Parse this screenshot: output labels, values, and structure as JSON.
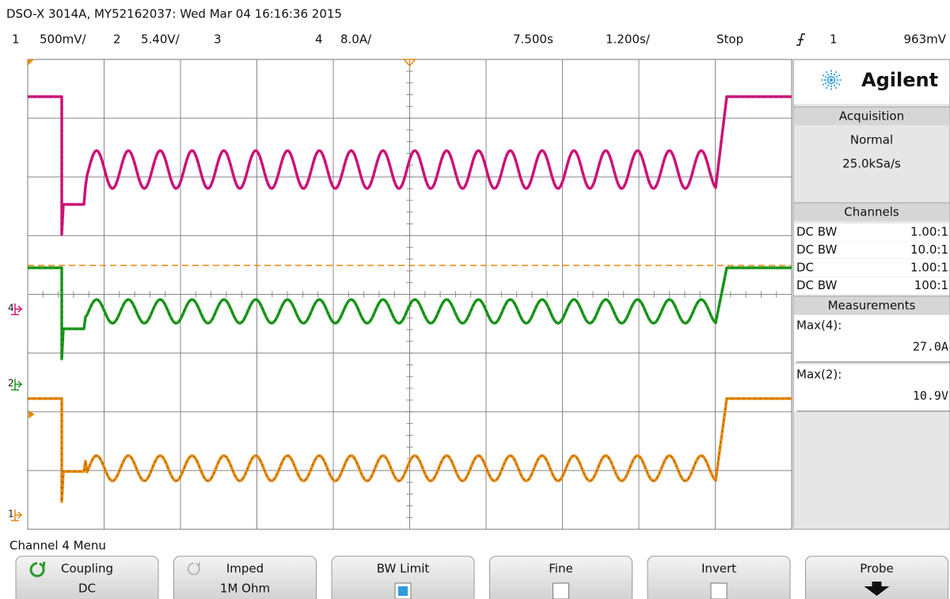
{
  "header": {
    "title": "DSO-X 3014A, MY52162037: Wed Mar 04 16:16:36 2015",
    "channels": [
      {
        "number": "1",
        "scale": "500mV/",
        "color": "#e8880c"
      },
      {
        "number": "2",
        "scale": "5.40V/",
        "color": "#1a9a1a"
      },
      {
        "number": "3",
        "color": "#5577dd"
      },
      {
        "number": "4",
        "scale": "8.0A/",
        "color": "#d4137a"
      }
    ],
    "time_delay": "7.500s",
    "time_scale": "1.200s/",
    "run_state": "Stop",
    "trigger_source": "1",
    "trigger_level": "963mV"
  },
  "markers": [
    "4",
    "2",
    "1"
  ],
  "side_panel": {
    "brand": "Agilent",
    "acquisition": {
      "title": "Acquisition",
      "mode": "Normal",
      "rate": "25.0kSa/s"
    },
    "channels": {
      "title": "Channels",
      "rows": [
        {
          "coupling": "DC BW",
          "probe": "1.00:1"
        },
        {
          "coupling": "DC BW",
          "probe": "10.0:1"
        },
        {
          "coupling": "DC",
          "probe": "1.00:1"
        },
        {
          "coupling": "DC BW",
          "probe": "100:1"
        }
      ]
    },
    "measurements": {
      "title": "Measurements",
      "items": [
        {
          "label": "Max(4):",
          "value": "27.0A"
        },
        {
          "label": "Max(2):",
          "value": "10.9V"
        }
      ]
    }
  },
  "menu": {
    "title": "Channel 4 Menu",
    "softkeys": [
      {
        "label": "Coupling",
        "value": "DC"
      },
      {
        "label": "Imped",
        "value": "1M Ohm"
      },
      {
        "label": "BW Limit",
        "checked": true
      },
      {
        "label": "Fine",
        "checked": false
      },
      {
        "label": "Invert",
        "checked": false
      },
      {
        "label": "Probe"
      }
    ]
  }
}
